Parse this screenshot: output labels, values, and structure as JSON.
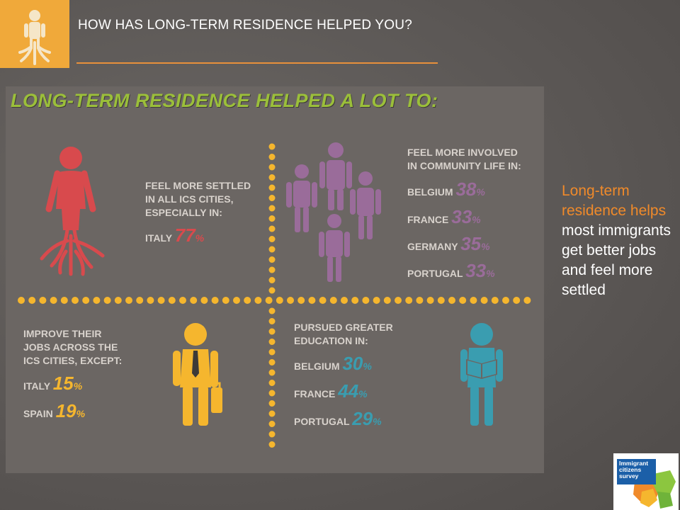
{
  "header": {
    "title": "HOW HAS LONG-TERM RESIDENCE HELPED YOU?"
  },
  "panel": {
    "heading": "LONG-TERM RESIDENCE HELPED A LOT TO:",
    "settled": {
      "title": [
        "FEEL MORE SETTLED",
        "IN ALL ICS CITIES,",
        "ESPECIALLY IN:"
      ],
      "stats": [
        {
          "country": "ITALY",
          "value": "77",
          "unit": "%"
        }
      ],
      "color": "#d84a4d"
    },
    "community": {
      "title": [
        "FEEL MORE INVOLVED",
        "IN COMMUNITY LIFE IN:"
      ],
      "stats": [
        {
          "country": "BELGIUM",
          "value": "38",
          "unit": "%"
        },
        {
          "country": "FRANCE",
          "value": "33",
          "unit": "%"
        },
        {
          "country": "GERMANY",
          "value": "35",
          "unit": "%"
        },
        {
          "country": "PORTUGAL",
          "value": "33",
          "unit": "%"
        }
      ],
      "color": "#9a6c9a"
    },
    "jobs": {
      "title": [
        "IMPROVE THEIR",
        "JOBS ACROSS THE",
        "ICS CITIES, EXCEPT:"
      ],
      "stats": [
        {
          "country": "ITALY",
          "value": "15",
          "unit": "%"
        },
        {
          "country": "SPAIN",
          "value": "19",
          "unit": "%"
        }
      ],
      "color": "#f5b62e"
    },
    "education": {
      "title": [
        "PURSUED GREATER",
        "EDUCATION IN:"
      ],
      "stats": [
        {
          "country": "BELGIUM",
          "value": "30",
          "unit": "%"
        },
        {
          "country": "FRANCE",
          "value": "44",
          "unit": "%"
        },
        {
          "country": "PORTUGAL",
          "value": "29",
          "unit": "%"
        }
      ],
      "color": "#3a9db0"
    }
  },
  "side": {
    "highlight": "Long-term residence helps",
    "rest": " most immigrants get better jobs and feel more settled"
  },
  "logo": {
    "text": [
      "Immigrant",
      "citizens",
      "survey"
    ]
  }
}
